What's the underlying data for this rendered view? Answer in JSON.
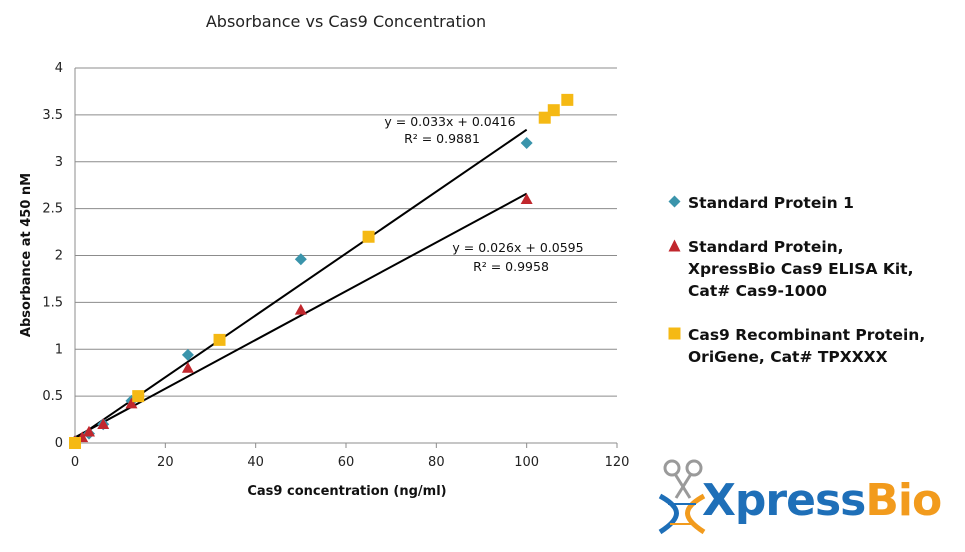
{
  "chart_data": {
    "type": "scatter",
    "title": "Absorbance vs Cas9 Concentration",
    "xlabel": "Cas9 concentration (ng/ml)",
    "ylabel": "Absorbance at 450 nM",
    "xlim": [
      0,
      120
    ],
    "ylim": [
      0,
      4
    ],
    "xticks": [
      0,
      20,
      40,
      60,
      80,
      100,
      120
    ],
    "yticks": [
      0,
      0.5,
      1,
      1.5,
      2,
      2.5,
      3,
      3.5,
      4
    ],
    "xtick_labels": [
      "0",
      "20",
      "40",
      "60",
      "80",
      "100",
      "120"
    ],
    "ytick_labels": [
      "0",
      "0.5",
      "1",
      "1.5",
      "2",
      "2.5",
      "3",
      "3.5",
      "4"
    ],
    "grid": "horizontal",
    "legend_position": "right",
    "series": [
      {
        "name": "Standard Protein 1",
        "marker": "diamond",
        "color": "#3a94ab",
        "x": [
          0,
          3.1,
          6.25,
          12.5,
          25,
          50,
          100
        ],
        "y": [
          0.02,
          0.1,
          0.2,
          0.45,
          0.94,
          1.96,
          3.2
        ]
      },
      {
        "name": "Standard Protein,\nXpressBio Cas9 ELISA Kit,\nCat# Cas9-1000",
        "marker": "triangle",
        "color": "#c1272d",
        "x": [
          0,
          1.6,
          3.1,
          6.25,
          12.5,
          25,
          50,
          100
        ],
        "y": [
          0.02,
          0.06,
          0.12,
          0.2,
          0.42,
          0.8,
          1.42,
          2.6
        ]
      },
      {
        "name": "Cas9 Recombinant Protein,\nOriGene, Cat# TPXXXX",
        "marker": "square",
        "color": "#f5b914",
        "x": [
          0,
          14,
          32,
          65,
          104,
          106,
          109
        ],
        "y": [
          0.0,
          0.5,
          1.1,
          2.2,
          3.47,
          3.55,
          3.66
        ]
      }
    ],
    "trendlines": [
      {
        "slope": 0.033,
        "intercept": 0.0416,
        "x_range": [
          0,
          100
        ]
      },
      {
        "slope": 0.026,
        "intercept": 0.0595,
        "x_range": [
          0,
          100
        ]
      }
    ],
    "annotations": [
      {
        "line1": "y = 0.033x + 0.0416",
        "line2": "R² = 0.9881"
      },
      {
        "line1": "y = 0.026x + 0.0595",
        "line2": "R² = 0.9958"
      }
    ]
  },
  "logo": {
    "text_part1": "Xpress",
    "text_part2": "Bio"
  }
}
